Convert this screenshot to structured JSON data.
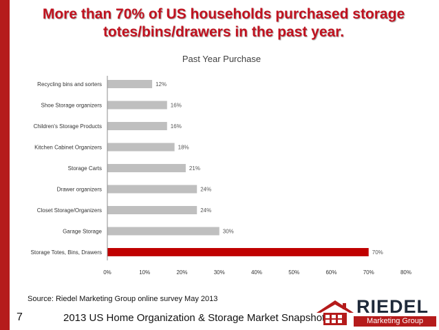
{
  "slide": {
    "headline": "More than 70% of US households purchased storage totes/bins/drawers in the past year.",
    "source": "Source:  Riedel Marketing Group online survey May 2013",
    "page_number": "7",
    "footer_title": "2013 US Home Organization & Storage Market Snapshot"
  },
  "logo": {
    "name": "RIEDEL",
    "tagline": "Marketing Group"
  },
  "colors": {
    "accent": "#b51b1b",
    "headline": "#c1121f",
    "bar_default": "#bfbfbf",
    "bar_highlight": "#c00000"
  },
  "chart_data": {
    "type": "bar",
    "orientation": "horizontal",
    "title": "Past Year Purchase",
    "categories": [
      "Recycling bins and sorters",
      "Shoe Storage organizers",
      "Children's Storage Products",
      "Kitchen Cabinet Organizers",
      "Storage Carts",
      "Drawer organizers",
      "Closet Storage/Organizers",
      "Garage Storage",
      "Storage Totes, Bins, Drawers"
    ],
    "values": [
      12,
      16,
      16,
      18,
      21,
      24,
      24,
      30,
      70
    ],
    "data_labels": [
      "12%",
      "16%",
      "16%",
      "18%",
      "21%",
      "24%",
      "24%",
      "30%",
      "70%"
    ],
    "highlight_index": 8,
    "x_ticks": [
      0,
      10,
      20,
      30,
      40,
      50,
      60,
      70,
      80
    ],
    "x_tick_labels": [
      "0%",
      "10%",
      "20%",
      "30%",
      "40%",
      "50%",
      "60%",
      "70%",
      "80%"
    ],
    "xlim": [
      0,
      80
    ],
    "xlabel": "",
    "ylabel": "",
    "grid": false,
    "legend": "none"
  }
}
